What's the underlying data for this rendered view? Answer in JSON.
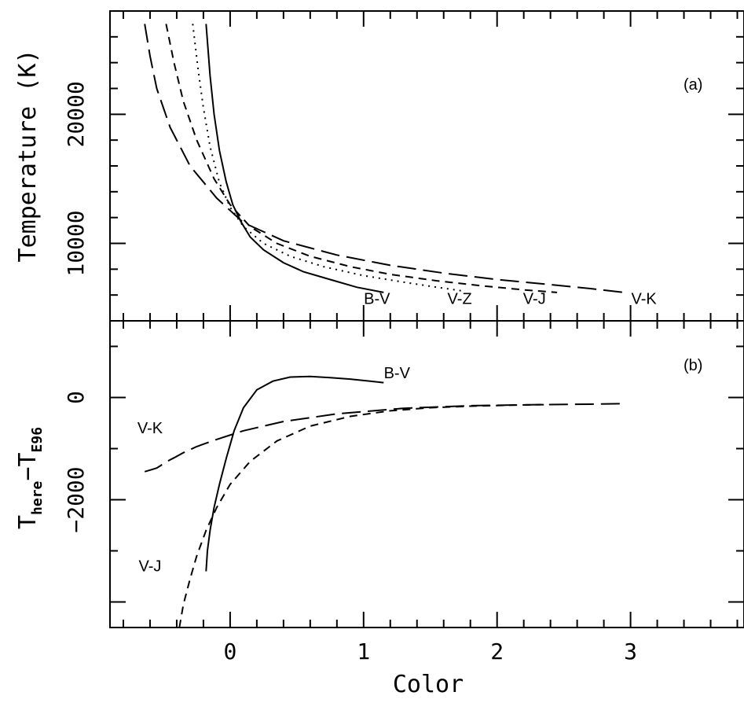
{
  "chart_data": [
    {
      "panel": "(a)",
      "type": "line",
      "ylabel": "Temperature (K)",
      "xlim": [
        -0.9,
        3.85
      ],
      "ylim": [
        4000,
        28000
      ],
      "x_ticks": [
        0,
        1,
        2,
        3
      ],
      "y_ticks": [
        10000,
        20000
      ],
      "y_tick_labels": [
        "10000",
        "20000"
      ],
      "series": [
        {
          "name": "B-V",
          "dash": "solid",
          "x": [
            -0.18,
            -0.15,
            -0.12,
            -0.08,
            -0.03,
            0.02,
            0.08,
            0.15,
            0.25,
            0.4,
            0.55,
            0.75,
            0.95,
            1.15
          ],
          "y": [
            27000,
            23000,
            20000,
            17200,
            14800,
            13000,
            11700,
            10500,
            9500,
            8500,
            7800,
            7200,
            6600,
            6200
          ],
          "label_x": 1.1,
          "label_y": 5300
        },
        {
          "name": "V-Z",
          "dash": "dotted",
          "x": [
            -0.28,
            -0.24,
            -0.2,
            -0.15,
            -0.08,
            0.0,
            0.1,
            0.25,
            0.45,
            0.7,
            1.0,
            1.3,
            1.55,
            1.75
          ],
          "y": [
            27000,
            23500,
            20500,
            17500,
            14700,
            12800,
            11300,
            10000,
            9000,
            8200,
            7500,
            7000,
            6600,
            6300
          ],
          "label_x": 1.72,
          "label_y": 5300
        },
        {
          "name": "V-J",
          "dash": "dashed",
          "x": [
            -0.48,
            -0.42,
            -0.35,
            -0.25,
            -0.12,
            0.0,
            0.15,
            0.35,
            0.6,
            0.9,
            1.2,
            1.55,
            1.9,
            2.2,
            2.45
          ],
          "y": [
            27000,
            24000,
            21000,
            18000,
            15000,
            13000,
            11300,
            10000,
            9000,
            8200,
            7600,
            7100,
            6700,
            6400,
            6200
          ],
          "label_x": 2.28,
          "label_y": 5300
        },
        {
          "name": "V-K",
          "dash": "long-dashed",
          "x": [
            -0.64,
            -0.6,
            -0.55,
            -0.45,
            -0.3,
            -0.1,
            0.1,
            0.4,
            0.8,
            1.2,
            1.6,
            2.0,
            2.4,
            2.7,
            2.95
          ],
          "y": [
            27000,
            24500,
            22000,
            19000,
            16000,
            13500,
            11600,
            10200,
            9100,
            8300,
            7700,
            7200,
            6800,
            6500,
            6200
          ],
          "label_x": 3.1,
          "label_y": 5300
        }
      ]
    },
    {
      "panel": "(b)",
      "type": "line",
      "ylabel": "T_here − T_E96",
      "ylabel_main": "T",
      "ylabel_sub1": "here",
      "ylabel_minus": "−T",
      "ylabel_sub2": "E96",
      "xlabel": "Color",
      "xlim": [
        -0.9,
        3.85
      ],
      "ylim": [
        -4500,
        1500
      ],
      "x_ticks": [
        0,
        1,
        2,
        3
      ],
      "x_tick_labels": [
        "0",
        "1",
        "2",
        "3"
      ],
      "y_ticks": [
        0,
        -2000
      ],
      "y_tick_labels": [
        "0",
        "−2000"
      ],
      "series": [
        {
          "name": "B-V",
          "dash": "solid",
          "x": [
            -0.18,
            -0.17,
            -0.15,
            -0.12,
            -0.08,
            -0.03,
            0.03,
            0.1,
            0.2,
            0.32,
            0.45,
            0.6,
            0.75,
            0.9,
            1.05,
            1.15
          ],
          "y": [
            -3400,
            -3000,
            -2600,
            -2150,
            -1700,
            -1200,
            -650,
            -200,
            150,
            320,
            400,
            410,
            390,
            360,
            320,
            290
          ],
          "label_x": 1.25,
          "label_y": 380
        },
        {
          "name": "V-J",
          "dash": "dashed",
          "x": [
            -0.38,
            -0.35,
            -0.3,
            -0.25,
            -0.18,
            -0.1,
            0.0,
            0.15,
            0.35,
            0.6,
            0.9,
            1.2,
            1.5,
            1.8,
            2.1,
            2.35
          ],
          "y": [
            -4500,
            -4050,
            -3550,
            -3100,
            -2600,
            -2150,
            -1700,
            -1250,
            -850,
            -560,
            -370,
            -260,
            -200,
            -170,
            -150,
            -140
          ],
          "label_x": -0.6,
          "label_y": -3400
        },
        {
          "name": "V-K",
          "dash": "long-dashed",
          "x": [
            -0.64,
            -0.6,
            -0.55,
            -0.52,
            -0.48,
            -0.42,
            -0.35,
            -0.25,
            -0.1,
            0.1,
            0.4,
            0.8,
            1.3,
            1.8,
            2.3,
            2.7,
            2.95
          ],
          "y": [
            -1450,
            -1420,
            -1380,
            -1330,
            -1260,
            -1180,
            -1080,
            -960,
            -820,
            -650,
            -470,
            -320,
            -210,
            -160,
            -140,
            -130,
            -120
          ],
          "label_x": -0.6,
          "label_y": -700
        }
      ]
    }
  ]
}
